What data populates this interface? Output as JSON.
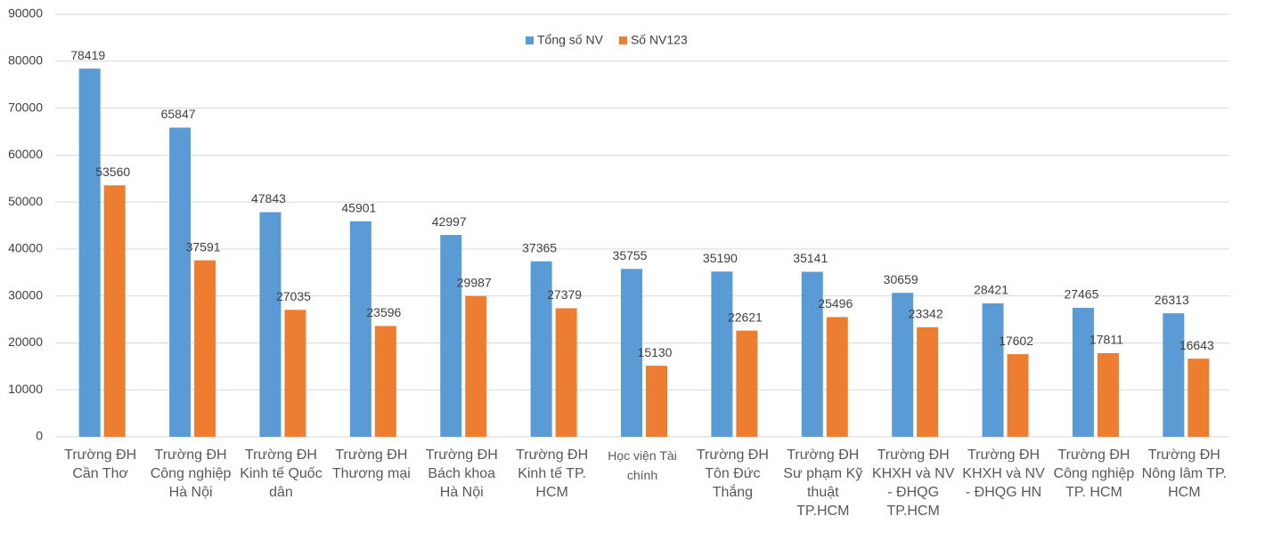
{
  "chart_data": {
    "type": "bar",
    "categories": [
      "Trường ĐH Cần Thơ",
      "Trường ĐH Công nghiệp Hà Nội",
      "Trường ĐH Kinh tế Quốc dân",
      "Trường ĐH Thương mại",
      "Trường ĐH Bách khoa Hà Nội",
      "Trường ĐH Kinh tế TP. HCM",
      "Học viện Tài chính",
      "Trường ĐH Tôn Đức Thắng",
      "Trường ĐH Sư phạm Kỹ thuật TP.HCM",
      "Trường ĐH KHXH và NV - ĐHQG TP.HCM",
      "Trường ĐH KHXH và NV - ĐHQG HN",
      "Trường ĐH Công nghiệp TP. HCM",
      "Trường ĐH Nông lâm TP. HCM"
    ],
    "series": [
      {
        "name": "Tổng số NV",
        "color": "#5b9bd5",
        "values": [
          78419,
          65847,
          47843,
          45901,
          42997,
          37365,
          35755,
          35190,
          35141,
          30659,
          28421,
          27465,
          26313
        ]
      },
      {
        "name": "Số NV123",
        "color": "#ed7d31",
        "values": [
          53560,
          37591,
          27035,
          23596,
          29987,
          27379,
          15130,
          22621,
          25496,
          23342,
          17602,
          17811,
          16643
        ]
      }
    ],
    "ylim": [
      0,
      90000
    ],
    "yticks": [
      0,
      10000,
      20000,
      30000,
      40000,
      50000,
      60000,
      70000,
      80000,
      90000
    ],
    "grid": true,
    "legend": "top"
  }
}
